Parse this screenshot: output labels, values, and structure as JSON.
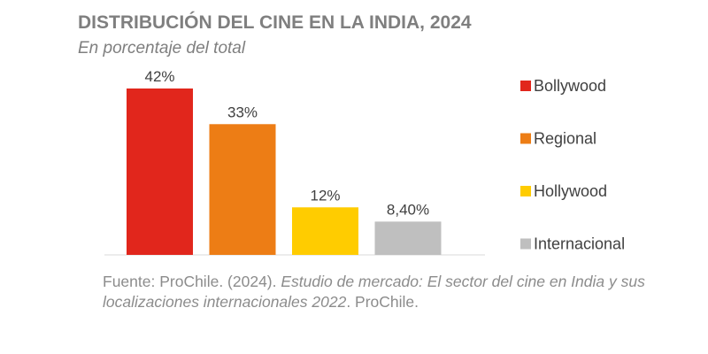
{
  "title": "DISTRIBUCIÓN DEL CINE EN LA INDIA, 2024",
  "subtitle": "En porcentaje del total",
  "source": {
    "prefix": "Fuente: ProChile. (2024). ",
    "italic": "Estudio de mercado: El sector del cine en India y sus localizaciones internacionales 2022",
    "suffix": ". ProChile."
  },
  "colors": {
    "Bollywood": "#e1261c",
    "Regional": "#ed7d15",
    "Hollywood": "#ffcc00",
    "Internacional": "#bfbfbf",
    "axis": "#d9d9d9"
  },
  "chart_data": {
    "type": "bar",
    "title": "DISTRIBUCIÓN DEL CINE EN LA INDIA, 2024",
    "subtitle": "En porcentaje del total",
    "xlabel": "",
    "ylabel": "",
    "ylim": [
      0,
      42
    ],
    "grid": false,
    "legend": "right",
    "categories": [
      "Bollywood",
      "Regional",
      "Hollywood",
      "Internacional"
    ],
    "values": [
      42,
      33,
      12,
      8.4
    ],
    "data_labels": [
      "42%",
      "33%",
      "12%",
      "8,40%"
    ]
  }
}
